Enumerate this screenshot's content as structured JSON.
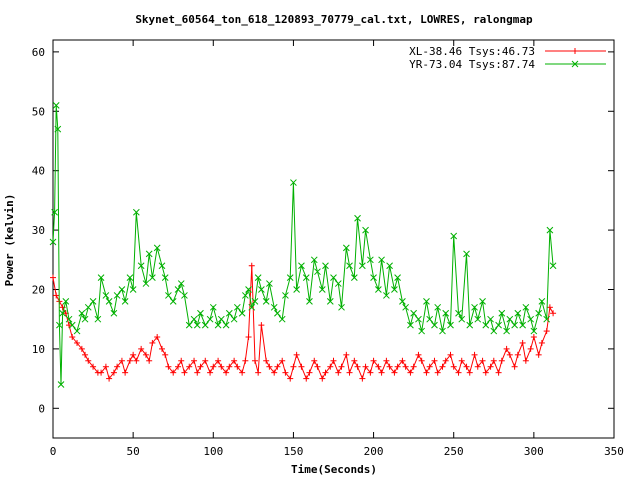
{
  "chart_data": {
    "type": "line",
    "title": "Skynet_60564_ton_618_120893_70779_cal.txt, LOWRES, ralongmap",
    "xlabel": "Time(Seconds)",
    "ylabel": "Power (kelvin)",
    "xlim": [
      0,
      350
    ],
    "ylim": [
      -5,
      62
    ],
    "xticks": [
      0,
      50,
      100,
      150,
      200,
      250,
      300,
      350
    ],
    "yticks": [
      0,
      10,
      20,
      30,
      40,
      50,
      60
    ],
    "grid": false,
    "legend_position": "top-right",
    "series": [
      {
        "name": "XL-38.46 Tsys:46.73",
        "color": "#ff0000",
        "marker": "plus",
        "x": [
          0,
          2,
          4,
          6,
          8,
          10,
          12,
          15,
          18,
          20,
          22,
          25,
          28,
          30,
          33,
          35,
          38,
          40,
          43,
          45,
          48,
          50,
          52,
          55,
          58,
          60,
          62,
          65,
          68,
          70,
          72,
          75,
          78,
          80,
          82,
          85,
          88,
          90,
          92,
          95,
          98,
          100,
          103,
          105,
          108,
          110,
          113,
          115,
          118,
          120,
          122,
          124,
          126,
          128,
          130,
          133,
          135,
          138,
          140,
          143,
          145,
          148,
          150,
          152,
          155,
          158,
          160,
          163,
          165,
          168,
          170,
          173,
          175,
          178,
          180,
          183,
          185,
          188,
          190,
          193,
          195,
          198,
          200,
          203,
          205,
          208,
          210,
          213,
          215,
          218,
          220,
          223,
          225,
          228,
          230,
          233,
          235,
          238,
          240,
          243,
          245,
          248,
          250,
          253,
          255,
          258,
          260,
          263,
          265,
          268,
          270,
          273,
          275,
          278,
          280,
          283,
          285,
          288,
          290,
          293,
          295,
          298,
          300,
          303,
          305,
          308,
          310,
          312
        ],
        "y": [
          22,
          19,
          18,
          17,
          16,
          14,
          12,
          11,
          10,
          9,
          8,
          7,
          6,
          6,
          7,
          5,
          6,
          7,
          8,
          6,
          8,
          9,
          8,
          10,
          9,
          8,
          11,
          12,
          10,
          9,
          7,
          6,
          7,
          8,
          6,
          7,
          8,
          6,
          7,
          8,
          6,
          7,
          8,
          7,
          6,
          7,
          8,
          7,
          6,
          8,
          12,
          24,
          8,
          6,
          14,
          8,
          7,
          6,
          7,
          8,
          6,
          5,
          7,
          9,
          7,
          5,
          6,
          8,
          7,
          5,
          6,
          7,
          8,
          6,
          7,
          9,
          6,
          8,
          7,
          5,
          7,
          6,
          8,
          7,
          6,
          8,
          7,
          6,
          7,
          8,
          7,
          6,
          7,
          9,
          8,
          6,
          7,
          8,
          6,
          7,
          8,
          9,
          7,
          6,
          8,
          7,
          6,
          9,
          7,
          8,
          6,
          7,
          8,
          6,
          8,
          10,
          9,
          7,
          9,
          11,
          8,
          10,
          12,
          9,
          11,
          13,
          17,
          16
        ]
      },
      {
        "name": "YR-73.04 Tsys:87.74",
        "color": "#00b000",
        "marker": "x",
        "x": [
          0,
          1,
          2,
          3,
          4,
          5,
          6,
          8,
          10,
          12,
          15,
          18,
          20,
          22,
          25,
          28,
          30,
          33,
          35,
          38,
          40,
          43,
          45,
          48,
          50,
          52,
          55,
          58,
          60,
          62,
          65,
          68,
          70,
          72,
          75,
          78,
          80,
          82,
          85,
          88,
          90,
          92,
          95,
          98,
          100,
          103,
          105,
          108,
          110,
          113,
          115,
          118,
          120,
          122,
          124,
          126,
          128,
          130,
          133,
          135,
          138,
          140,
          143,
          145,
          148,
          150,
          152,
          155,
          158,
          160,
          163,
          165,
          168,
          170,
          173,
          175,
          178,
          180,
          183,
          185,
          188,
          190,
          193,
          195,
          198,
          200,
          203,
          205,
          208,
          210,
          213,
          215,
          218,
          220,
          223,
          225,
          228,
          230,
          233,
          235,
          238,
          240,
          243,
          245,
          248,
          250,
          253,
          255,
          258,
          260,
          263,
          265,
          268,
          270,
          273,
          275,
          278,
          280,
          283,
          285,
          288,
          290,
          293,
          295,
          298,
          300,
          303,
          305,
          308,
          310,
          312
        ],
        "y": [
          28,
          33,
          51,
          47,
          14,
          4,
          16,
          18,
          15,
          14,
          13,
          16,
          15,
          17,
          18,
          15,
          22,
          19,
          18,
          16,
          19,
          20,
          18,
          22,
          20,
          33,
          24,
          21,
          26,
          22,
          27,
          24,
          22,
          19,
          18,
          20,
          21,
          19,
          14,
          15,
          14,
          16,
          14,
          15,
          17,
          14,
          15,
          14,
          16,
          15,
          17,
          16,
          19,
          20,
          17,
          18,
          22,
          20,
          18,
          21,
          17,
          16,
          15,
          19,
          22,
          38,
          20,
          24,
          22,
          18,
          25,
          23,
          20,
          24,
          18,
          22,
          21,
          17,
          27,
          24,
          22,
          32,
          24,
          30,
          25,
          22,
          20,
          25,
          19,
          24,
          20,
          22,
          18,
          17,
          14,
          16,
          15,
          13,
          18,
          15,
          14,
          17,
          13,
          16,
          14,
          29,
          16,
          15,
          26,
          14,
          17,
          15,
          18,
          14,
          15,
          13,
          14,
          16,
          13,
          15,
          14,
          16,
          14,
          17,
          15,
          13,
          16,
          18,
          15,
          30,
          24
        ]
      }
    ]
  }
}
